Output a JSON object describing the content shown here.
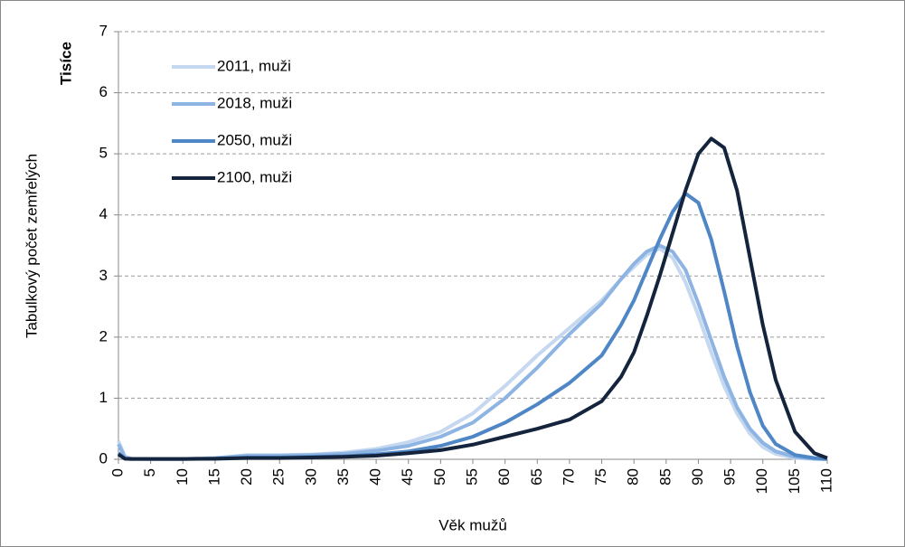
{
  "chart_data": {
    "type": "line",
    "y_unit_label": "Tisíce",
    "y_axis_label": "Tabulkový počet zemřelých",
    "x_axis_label": "Věk mužů",
    "x": [
      0,
      1,
      2,
      5,
      10,
      15,
      20,
      25,
      30,
      35,
      40,
      45,
      50,
      55,
      60,
      65,
      70,
      75,
      78,
      80,
      82,
      84,
      86,
      88,
      90,
      92,
      94,
      96,
      98,
      100,
      102,
      105,
      108,
      110
    ],
    "series": [
      {
        "name": "2011, muži",
        "color": "#c5d8ef",
        "values": [
          0.3,
          0.05,
          0.01,
          0.005,
          0.005,
          0.02,
          0.07,
          0.07,
          0.08,
          0.11,
          0.17,
          0.28,
          0.45,
          0.75,
          1.2,
          1.7,
          2.15,
          2.6,
          2.95,
          3.15,
          3.35,
          3.45,
          3.3,
          2.9,
          2.35,
          1.75,
          1.2,
          0.75,
          0.42,
          0.2,
          0.09,
          0.02,
          0.005,
          0
        ]
      },
      {
        "name": "2018, muži",
        "color": "#8db4e2",
        "values": [
          0.25,
          0.03,
          0.01,
          0.005,
          0.005,
          0.02,
          0.06,
          0.06,
          0.07,
          0.09,
          0.14,
          0.22,
          0.37,
          0.6,
          1.0,
          1.5,
          2.05,
          2.55,
          2.95,
          3.2,
          3.4,
          3.5,
          3.4,
          3.1,
          2.55,
          1.95,
          1.35,
          0.85,
          0.5,
          0.27,
          0.13,
          0.04,
          0.01,
          0
        ]
      },
      {
        "name": "2050, muži",
        "color": "#4f86c6",
        "values": [
          0.1,
          0.01,
          0.005,
          0.005,
          0.005,
          0.01,
          0.03,
          0.03,
          0.04,
          0.05,
          0.08,
          0.13,
          0.22,
          0.37,
          0.6,
          0.9,
          1.25,
          1.7,
          2.2,
          2.6,
          3.1,
          3.6,
          4.05,
          4.35,
          4.2,
          3.6,
          2.75,
          1.85,
          1.1,
          0.55,
          0.25,
          0.07,
          0.02,
          0.01
        ]
      },
      {
        "name": "2100, muži",
        "color": "#14243d",
        "values": [
          0.08,
          0.01,
          0.005,
          0.005,
          0.005,
          0.01,
          0.02,
          0.02,
          0.03,
          0.04,
          0.06,
          0.1,
          0.15,
          0.24,
          0.37,
          0.5,
          0.65,
          0.95,
          1.35,
          1.75,
          2.35,
          3.0,
          3.7,
          4.4,
          5.0,
          5.25,
          5.1,
          4.4,
          3.3,
          2.2,
          1.3,
          0.45,
          0.1,
          0.02
        ]
      }
    ],
    "xlim": [
      0,
      110
    ],
    "xticks": [
      0,
      5,
      10,
      15,
      20,
      25,
      30,
      35,
      40,
      45,
      50,
      55,
      60,
      65,
      70,
      75,
      80,
      85,
      90,
      95,
      100,
      105,
      110
    ],
    "ylim": [
      0,
      7
    ],
    "yticks": [
      0,
      1,
      2,
      3,
      4,
      5,
      6,
      7
    ],
    "grid": true,
    "legend": "top-left"
  }
}
